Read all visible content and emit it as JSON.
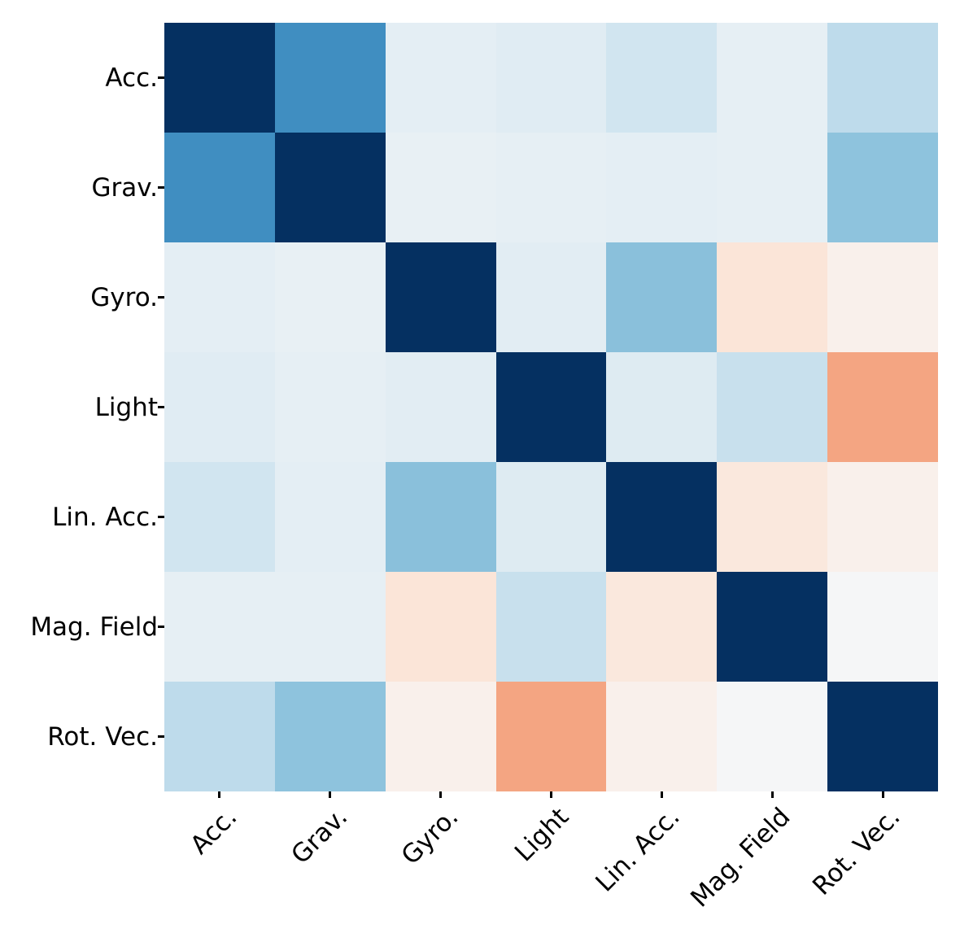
{
  "chart_data": {
    "type": "heatmap",
    "title": "",
    "description": "Correlation matrix heatmap of smartphone sensors",
    "categories": [
      "Acc.",
      "Grav.",
      "Gyro.",
      "Light",
      "Lin. Acc.",
      "Mag. Field",
      "Rot. Vec."
    ],
    "x_tick_labels": [
      "Acc.",
      "Grav.",
      "Gyro.",
      "Light",
      "Lin. Acc.",
      "Mag. Field",
      "Rot. Vec."
    ],
    "y_tick_labels": [
      "Acc.",
      "Grav.",
      "Gyro.",
      "Light",
      "Lin. Acc.",
      "Mag. Field",
      "Rot. Vec."
    ],
    "matrix": [
      [
        1.0,
        0.62,
        0.1,
        0.12,
        0.2,
        0.09,
        0.26
      ],
      [
        0.62,
        1.0,
        0.08,
        0.09,
        0.1,
        0.09,
        0.41
      ],
      [
        0.1,
        0.08,
        1.0,
        0.11,
        0.42,
        -0.13,
        -0.05
      ],
      [
        0.12,
        0.09,
        0.11,
        1.0,
        0.13,
        0.23,
        -0.4
      ],
      [
        0.2,
        0.1,
        0.42,
        0.13,
        1.0,
        -0.11,
        -0.05
      ],
      [
        0.09,
        0.09,
        -0.13,
        0.23,
        -0.11,
        1.0,
        0.01
      ],
      [
        0.26,
        0.41,
        -0.05,
        -0.4,
        -0.05,
        0.01,
        1.0
      ]
    ],
    "vmin": -1,
    "vmax": 1,
    "colormap": {
      "name": "RdBu",
      "stops": [
        "#67001f",
        "#b2182b",
        "#d6604d",
        "#f4a582",
        "#fddbc7",
        "#f7f7f7",
        "#d1e5f0",
        "#92c5de",
        "#4393c3",
        "#2166ac",
        "#053061"
      ]
    },
    "x_tick_rotation_deg": 45,
    "grid": false,
    "legend": "none",
    "colorbar": "none"
  },
  "colors": {
    "background": "#ffffff",
    "tick_color": "#000000",
    "label_color": "#000000",
    "diagonal_color": "#053061",
    "max_negative_visible": "#f4a582"
  }
}
